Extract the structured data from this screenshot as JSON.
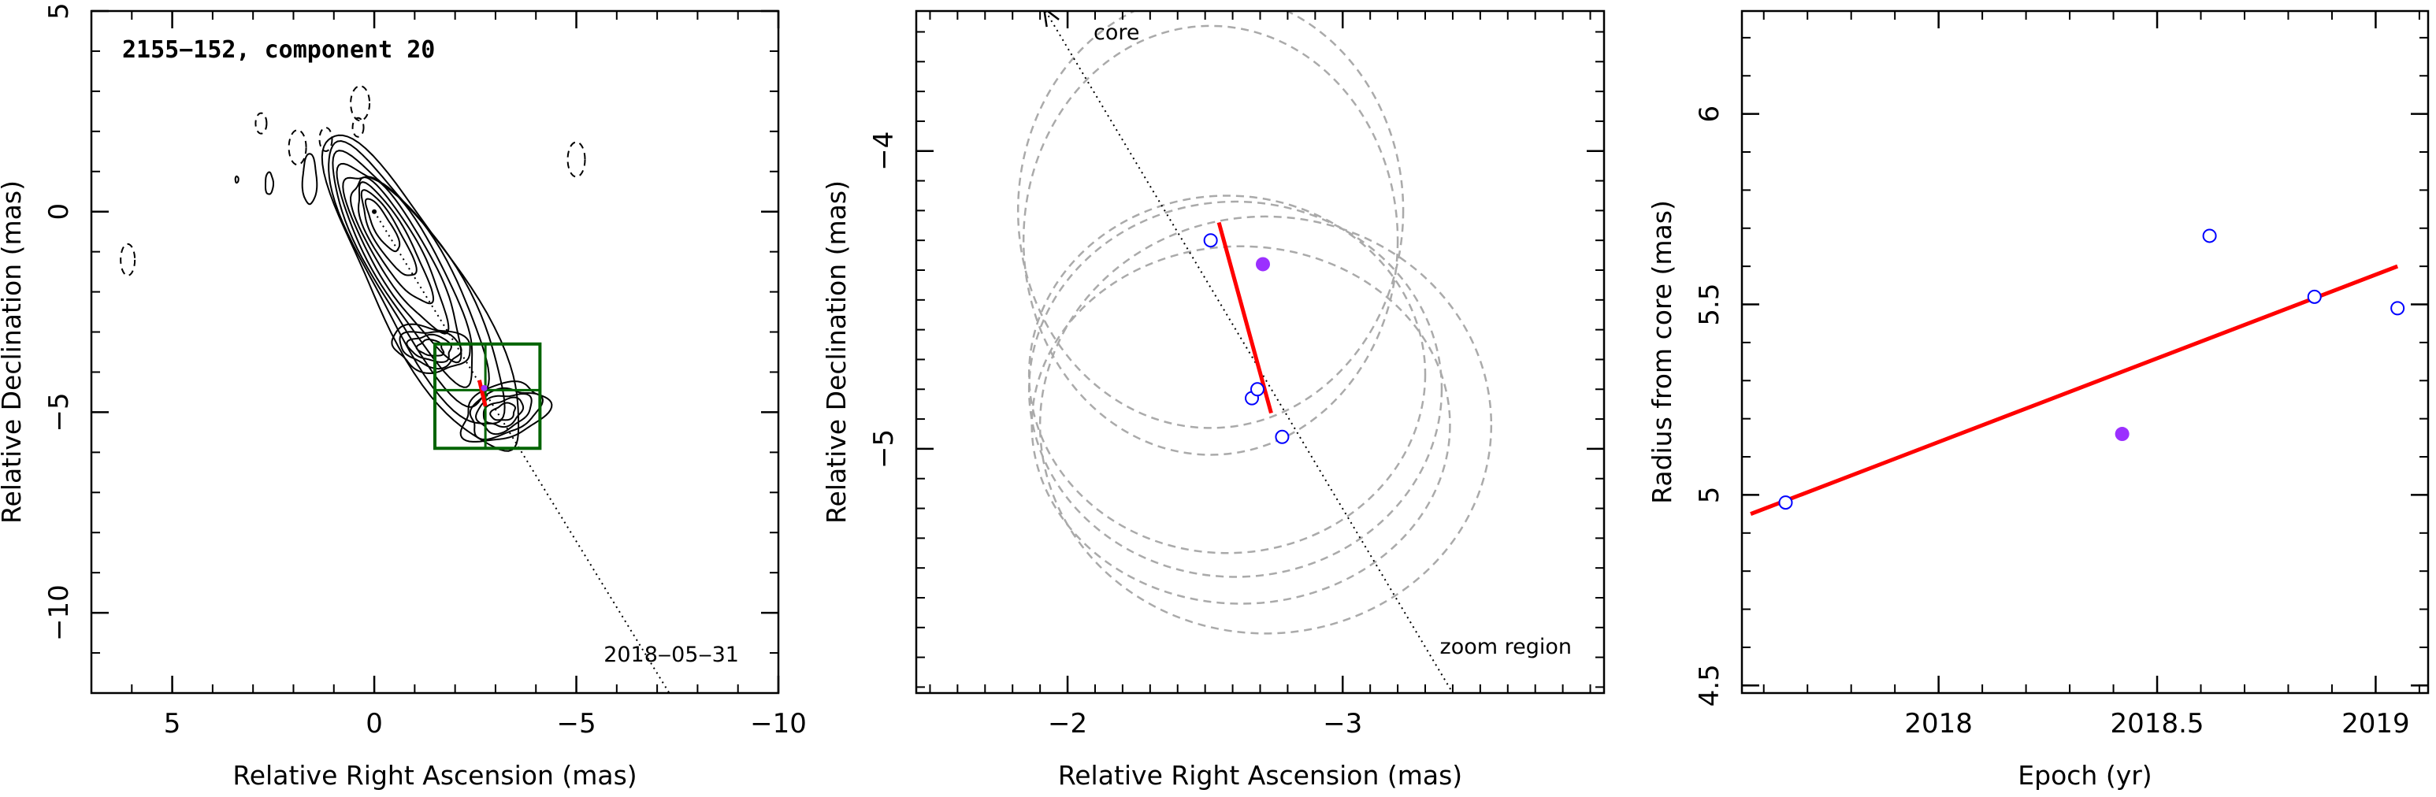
{
  "chart_data": [
    {
      "type": "contour",
      "title": "2155−152, component 20",
      "xlabel": "Relative Right Ascension (mas)",
      "ylabel": "Relative Declination (mas)",
      "xlim": [
        7,
        -10
      ],
      "ylim": [
        -12,
        5
      ],
      "xticks": [
        {
          "v": 5,
          "t": "5"
        },
        {
          "v": 0,
          "t": "0"
        },
        {
          "v": -5,
          "t": "−5"
        },
        {
          "v": -10,
          "t": "−10"
        }
      ],
      "yticks": [
        {
          "v": 5,
          "t": "5"
        },
        {
          "v": 0,
          "t": "0"
        },
        {
          "v": -5,
          "t": "−5"
        },
        {
          "v": -10,
          "t": "−10"
        }
      ],
      "annotation": "2018‒05‒31",
      "direction_line": {
        "from": [
          0,
          0
        ],
        "to": [
          -7.3,
          -12
        ]
      },
      "contour_levels": 9,
      "contour_core": [
        0,
        0
      ],
      "zoom_box": {
        "x": [
          -1.5,
          -4.1
        ],
        "y": [
          -3.3,
          -5.9
        ],
        "cross": [
          -2.75,
          -4.45
        ]
      },
      "fit_line": {
        "from": [
          -2.6,
          -4.2
        ],
        "to": [
          -2.75,
          -4.85
        ]
      },
      "marker_filled": [
        -2.72,
        -4.4
      ]
    },
    {
      "type": "scatter",
      "xlabel": "Relative Right Ascension (mas)",
      "ylabel": "Relative Declination (mas)",
      "xlim": [
        -1.45,
        -3.95
      ],
      "ylim": [
        -5.82,
        -3.53
      ],
      "xticks": [
        {
          "v": -2,
          "t": "−2"
        },
        {
          "v": -3,
          "t": "−3"
        }
      ],
      "yticks": [
        {
          "v": -4,
          "t": "−4"
        },
        {
          "v": -5,
          "t": "−5"
        }
      ],
      "direction_label": "core",
      "region_label": "zoom region",
      "direction_line": {
        "from": [
          -1.92,
          -3.53
        ],
        "to": [
          -3.4,
          -5.82
        ]
      },
      "points_open": [
        [
          -2.52,
          -4.3
        ],
        [
          -2.67,
          -4.83
        ],
        [
          -2.69,
          -4.8
        ],
        [
          -2.78,
          -4.96
        ]
      ],
      "point_filled": [
        -2.71,
        -4.38
      ],
      "fit_line": {
        "from": [
          -2.55,
          -4.24
        ],
        "to": [
          -2.74,
          -4.88
        ]
      },
      "beams": [
        {
          "cx": -2.52,
          "cy": -4.2,
          "rx": 0.7,
          "ry": 0.73
        },
        {
          "cx": -2.52,
          "cy": -4.3,
          "rx": 0.68,
          "ry": 0.72
        },
        {
          "cx": -2.58,
          "cy": -4.75,
          "rx": 0.72,
          "ry": 0.6
        },
        {
          "cx": -2.61,
          "cy": -4.8,
          "rx": 0.75,
          "ry": 0.63
        },
        {
          "cx": -2.63,
          "cy": -4.92,
          "rx": 0.76,
          "ry": 0.6
        },
        {
          "cx": -2.72,
          "cy": -4.92,
          "rx": 0.82,
          "ry": 0.7
        }
      ]
    },
    {
      "type": "scatter",
      "xlabel": "Epoch (yr)",
      "ylabel": "Radius from core (mas)",
      "xlim": [
        2017.55,
        2019.12
      ],
      "ylim": [
        4.48,
        6.27
      ],
      "xticks": [
        {
          "v": 2018,
          "t": "2018"
        },
        {
          "v": 2018.5,
          "t": "2018.5"
        },
        {
          "v": 2019,
          "t": "2019"
        }
      ],
      "yticks": [
        {
          "v": 4.5,
          "t": "4.5"
        },
        {
          "v": 5,
          "t": "5"
        },
        {
          "v": 5.5,
          "t": "5.5"
        },
        {
          "v": 6,
          "t": "6"
        }
      ],
      "points_open": [
        [
          2017.65,
          4.98
        ],
        [
          2018.62,
          5.68
        ],
        [
          2018.86,
          5.52
        ],
        [
          2019.05,
          5.49
        ]
      ],
      "point_filled": [
        2018.42,
        5.16
      ],
      "fit_line": {
        "x": [
          2017.57,
          2019.05
        ],
        "y": [
          4.95,
          5.6
        ]
      }
    }
  ],
  "colors": {
    "axes": "#000000",
    "fit": "#ff0000",
    "open_marker": "#0000ff",
    "filled_marker": "#9b30ff",
    "zoom_box": "#006400",
    "beam": "#aaaaaa",
    "contour": "#000000"
  }
}
